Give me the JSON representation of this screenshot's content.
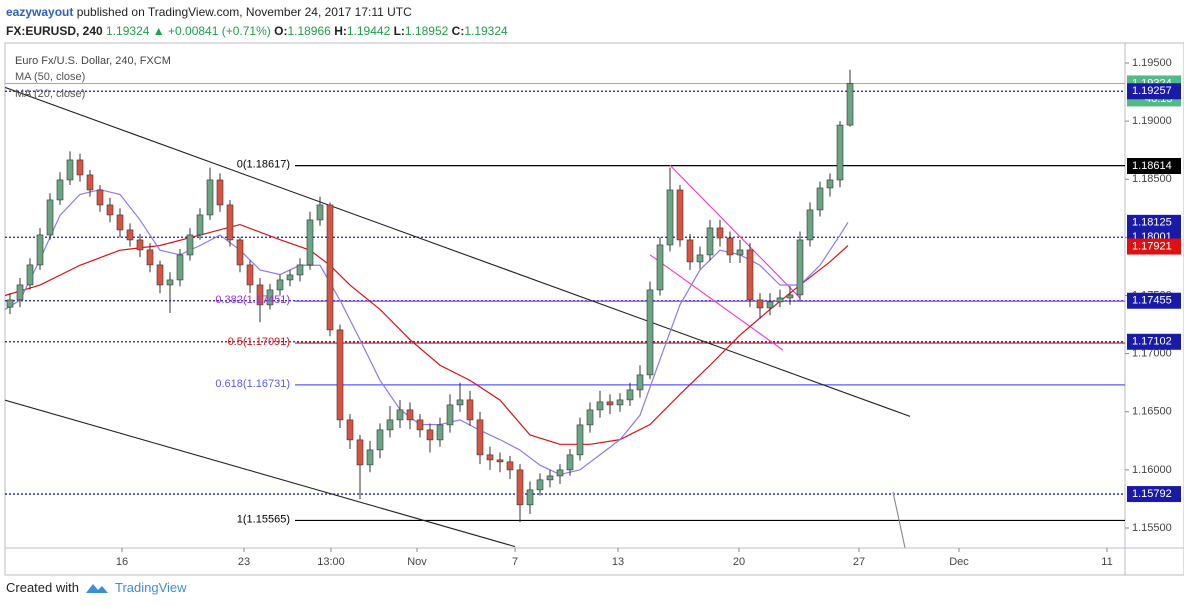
{
  "header": {
    "author": "eazywayout",
    "published": "published on TradingView.com, November 24, 2017 17:11 UTC",
    "symbol": "FX:EURUSD, 240",
    "last": "1.19324",
    "arrow": "▲",
    "change": "+0.00841 (+0.71%)",
    "o_label": "O:",
    "open": "1.18966",
    "h_label": "H:",
    "high": "1.19442",
    "l_label": "L:",
    "low": "1.18952",
    "c_label": "C:",
    "close": "1.19324"
  },
  "chart_data": {
    "type": "candlestick",
    "title": "Euro Fx/U.S. Dollar, 240, FXCM",
    "up_color": "#6ba583",
    "down_color": "#d75442",
    "x": [
      0,
      1,
      2,
      3,
      4,
      5,
      6,
      7,
      8,
      9,
      10,
      11,
      12,
      13,
      14,
      15,
      16,
      17,
      18,
      19,
      20,
      21,
      22,
      23,
      24,
      25,
      26,
      27,
      28,
      29,
      30,
      31,
      32,
      33,
      34,
      35,
      36,
      37,
      38,
      39,
      40,
      41,
      42,
      43,
      44,
      45,
      46,
      47,
      48,
      49,
      50,
      51,
      52,
      53,
      54,
      55,
      56,
      57,
      58,
      59,
      60,
      61,
      62,
      63,
      64,
      65,
      66,
      67,
      68,
      69,
      70,
      71,
      72,
      73,
      74,
      75,
      76,
      77,
      78,
      79,
      80,
      81,
      82,
      83,
      84
    ],
    "open": [
      1.174,
      1.17462,
      1.17591,
      1.17763,
      1.18021,
      1.18322,
      1.18494,
      1.18666,
      1.18537,
      1.18408,
      1.18279,
      1.18193,
      1.18064,
      1.17978,
      1.17892,
      1.17763,
      1.17591,
      1.17634,
      1.17849,
      1.18021,
      1.18193,
      1.18494,
      1.18279,
      1.17978,
      1.17763,
      1.17591,
      1.17419,
      1.17548,
      1.17634,
      1.17677,
      1.17763,
      1.1815,
      1.18279,
      1.17204,
      1.1643,
      1.16258,
      1.16043,
      1.16172,
      1.16344,
      1.1643,
      1.16516,
      1.1643,
      1.16344,
      1.16258,
      1.16387,
      1.16559,
      1.16602,
      1.1643,
      1.16129,
      1.16086,
      1.16069,
      1.16,
      1.15699,
      1.15828,
      1.15914,
      1.15948,
      1.16,
      1.16129,
      1.16387,
      1.16516,
      1.16585,
      1.16559,
      1.16602,
      1.16688,
      1.16817,
      1.17548,
      1.17935,
      1.18408,
      1.17978,
      1.17789,
      1.17849,
      1.18081,
      1.17995,
      1.17849,
      1.17892,
      1.17462,
      1.17393,
      1.17445,
      1.17479,
      1.17505,
      1.17978,
      1.18236,
      1.18425,
      1.18494,
      1.18966
    ],
    "high": [
      1.1752,
      1.1765,
      1.1782,
      1.1808,
      1.1838,
      1.1856,
      1.1874,
      1.1872,
      1.1858,
      1.1845,
      1.1834,
      1.1825,
      1.1812,
      1.1803,
      1.1795,
      1.178,
      1.177,
      1.179,
      1.1808,
      1.1825,
      1.186,
      1.1855,
      1.1832,
      1.18,
      1.178,
      1.1765,
      1.176,
      1.1768,
      1.1772,
      1.1782,
      1.1822,
      1.1835,
      1.183,
      1.1725,
      1.1648,
      1.163,
      1.1625,
      1.164,
      1.1655,
      1.166,
      1.1658,
      1.1648,
      1.164,
      1.1645,
      1.1665,
      1.1675,
      1.1668,
      1.165,
      1.162,
      1.1615,
      1.1612,
      1.1605,
      1.159,
      1.1597,
      1.16,
      1.1605,
      1.1618,
      1.1645,
      1.1658,
      1.1668,
      1.1665,
      1.1666,
      1.1675,
      1.169,
      1.1762,
      1.18,
      1.186,
      1.1845,
      1.1803,
      1.1792,
      1.1815,
      1.1815,
      1.1805,
      1.1798,
      1.1795,
      1.1752,
      1.1752,
      1.1755,
      1.1758,
      1.1805,
      1.183,
      1.1848,
      1.1855,
      1.19,
      1.19442
    ],
    "low": [
      1.1734,
      1.174,
      1.1755,
      1.1772,
      1.1798,
      1.1828,
      1.1845,
      1.1848,
      1.1835,
      1.1822,
      1.1813,
      1.18,
      1.1792,
      1.1783,
      1.177,
      1.1752,
      1.1735,
      1.1758,
      1.178,
      1.1798,
      1.1815,
      1.1822,
      1.1792,
      1.177,
      1.1752,
      1.1727,
      1.1738,
      1.175,
      1.1758,
      1.1762,
      1.1772,
      1.181,
      1.1715,
      1.1636,
      1.1618,
      1.1575,
      1.1598,
      1.161,
      1.1628,
      1.1636,
      1.1635,
      1.1628,
      1.1615,
      1.162,
      1.1632,
      1.165,
      1.1638,
      1.1605,
      1.16,
      1.1598,
      1.1592,
      1.1555,
      1.1562,
      1.1578,
      1.1585,
      1.1588,
      1.1595,
      1.1608,
      1.1632,
      1.1645,
      1.1648,
      1.165,
      1.1655,
      1.1662,
      1.1678,
      1.175,
      1.1788,
      1.1792,
      1.1772,
      1.1773,
      1.178,
      1.1792,
      1.1778,
      1.1778,
      1.174,
      1.173,
      1.1733,
      1.174,
      1.1742,
      1.1745,
      1.1792,
      1.1818,
      1.1835,
      1.1843,
      1.18952
    ],
    "close": [
      1.17462,
      1.17591,
      1.17763,
      1.18021,
      1.18322,
      1.18494,
      1.18666,
      1.18537,
      1.18408,
      1.18279,
      1.18193,
      1.18064,
      1.17978,
      1.17892,
      1.17763,
      1.17591,
      1.17634,
      1.17849,
      1.18021,
      1.18193,
      1.18494,
      1.18279,
      1.17978,
      1.17763,
      1.17591,
      1.17419,
      1.17548,
      1.17634,
      1.17677,
      1.17763,
      1.1815,
      1.18279,
      1.17204,
      1.1643,
      1.16258,
      1.16043,
      1.16172,
      1.16344,
      1.1643,
      1.16516,
      1.1643,
      1.16344,
      1.16258,
      1.16387,
      1.16559,
      1.16602,
      1.1643,
      1.16129,
      1.16086,
      1.16069,
      1.16,
      1.15699,
      1.15828,
      1.15914,
      1.15948,
      1.16,
      1.16129,
      1.16387,
      1.16516,
      1.16585,
      1.16559,
      1.16602,
      1.16688,
      1.16817,
      1.17548,
      1.17935,
      1.18408,
      1.17978,
      1.17789,
      1.17849,
      1.18081,
      1.17995,
      1.17849,
      1.17892,
      1.17462,
      1.17393,
      1.17445,
      1.17479,
      1.17505,
      1.17978,
      1.18236,
      1.18425,
      1.18494,
      1.18966,
      1.19324
    ],
    "series": [
      {
        "name": "MA (50, close)",
        "color": "#e01010",
        "x": [
          -0.5,
          3,
          7,
          11,
          15,
          19,
          23,
          27,
          30,
          32,
          34,
          37,
          40,
          43,
          46,
          49,
          52,
          55,
          58,
          61,
          64,
          67,
          70,
          73,
          76,
          79,
          82,
          83.8
        ],
        "values": [
          1.175,
          1.1759,
          1.1776,
          1.1789,
          1.1793,
          1.1802,
          1.1811,
          1.1798,
          1.1789,
          1.1776,
          1.1759,
          1.1738,
          1.1712,
          1.169,
          1.1677,
          1.166,
          1.163,
          1.1622,
          1.1622,
          1.1626,
          1.1639,
          1.1665,
          1.169,
          1.1716,
          1.1738,
          1.1759,
          1.1779,
          1.1793
        ]
      },
      {
        "name": "MA (20, close)",
        "color": "#8a7cf0",
        "x": [
          -0.5,
          1,
          3,
          5,
          7,
          9,
          11,
          13,
          15,
          17,
          19,
          21,
          23,
          25,
          27,
          29,
          31,
          33,
          35,
          37,
          39,
          41,
          43,
          45,
          47,
          49,
          51,
          53,
          55,
          57,
          59,
          61,
          63,
          65,
          67,
          69,
          71,
          73,
          75,
          77,
          79,
          81,
          83,
          83.8
        ],
        "values": [
          1.1738,
          1.1746,
          1.1781,
          1.1819,
          1.1837,
          1.1841,
          1.1837,
          1.1815,
          1.1789,
          1.1785,
          1.1793,
          1.1802,
          1.1789,
          1.1772,
          1.1768,
          1.1776,
          1.1776,
          1.1746,
          1.1712,
          1.1677,
          1.1652,
          1.1639,
          1.1639,
          1.1643,
          1.1634,
          1.1626,
          1.1617,
          1.1604,
          1.1596,
          1.16,
          1.1613,
          1.1626,
          1.1647,
          1.1695,
          1.1742,
          1.1772,
          1.1789,
          1.1785,
          1.1776,
          1.1759,
          1.1759,
          1.1776,
          1.1802,
          1.1813
        ]
      }
    ],
    "fib_levels": [
      {
        "label": "0(1.18617)",
        "value": 1.18617,
        "color": "#000000"
      },
      {
        "label": "0.382(1.17451)",
        "value": 1.17451,
        "color": "#9b30e0"
      },
      {
        "label": "0.5(1.17091)",
        "value": 1.17091,
        "color": "#e01010"
      },
      {
        "label": "0.618(1.16731)",
        "value": 1.16731,
        "color": "#5b5bf0"
      },
      {
        "label": "1(1.15565)",
        "value": 1.15565,
        "color": "#000000"
      }
    ],
    "trend_lines": [
      {
        "color": "#222222",
        "x": [
          -0.5,
          90
        ],
        "values": [
          1.1929,
          1.1646
        ]
      },
      {
        "color": "#222222",
        "x": [
          -0.5,
          50.5
        ],
        "values": [
          1.166,
          1.1534
        ]
      },
      {
        "color": "#ff33cc",
        "x": [
          66,
          79
        ],
        "values": [
          1.1862,
          1.1748
        ]
      },
      {
        "color": "#ff33cc",
        "x": [
          64,
          77.3
        ],
        "values": [
          1.1785,
          1.1703
        ]
      },
      {
        "color": "#888888",
        "x": [
          88.3,
          89.5
        ],
        "values": [
          1.1581,
          1.1533
        ]
      }
    ],
    "price_lines": [
      {
        "value": 1.19324,
        "color": "#53b987",
        "line": "solid"
      },
      {
        "value": 1.19257,
        "color": "#1a1aa8",
        "line": "dotted"
      },
      {
        "value": 1.18614,
        "color": "#000000",
        "line": "none"
      },
      {
        "value": 1.18125,
        "color": "#1a1aa8",
        "line": "none"
      },
      {
        "value": 1.18001,
        "color": "#1a1aa8",
        "line": "dotted"
      },
      {
        "value": 1.17921,
        "color": "#e01010",
        "line": "none"
      },
      {
        "value": 1.17455,
        "color": "#1a1aa8",
        "line": "dotted"
      },
      {
        "value": 1.17102,
        "color": "#1a1aa8",
        "line": "dotted"
      },
      {
        "value": 1.15792,
        "color": "#1a1aa8",
        "line": "dotted"
      }
    ],
    "countdown": "48:15",
    "xlim": [
      -0.5,
      111.5
    ],
    "xticks": [
      {
        "value": 11.2,
        "label": "16"
      },
      {
        "value": 23.4,
        "label": "23"
      },
      {
        "value": 32.1,
        "label": "13:00"
      },
      {
        "value": 40.7,
        "label": "Nov"
      },
      {
        "value": 50.5,
        "label": "7"
      },
      {
        "value": 60.8,
        "label": "13"
      },
      {
        "value": 72.9,
        "label": "20"
      },
      {
        "value": 84.9,
        "label": "27"
      },
      {
        "value": 94.9,
        "label": "Dec"
      },
      {
        "value": 109.7,
        "label": "11"
      }
    ],
    "ylim": [
      1.15328,
      1.19672
    ],
    "yticks": [
      {
        "value": 1.155,
        "label": "1.15500"
      },
      {
        "value": 1.16,
        "label": "1.16000"
      },
      {
        "value": 1.165,
        "label": "1.16500"
      },
      {
        "value": 1.17,
        "label": "1.17000"
      },
      {
        "value": 1.175,
        "label": "1.17500"
      },
      {
        "value": 1.18,
        "label": "1.18000"
      },
      {
        "value": 1.185,
        "label": "1.18500"
      },
      {
        "value": 1.19,
        "label": "1.19000"
      },
      {
        "value": 1.195,
        "label": "1.19500"
      }
    ]
  },
  "footer": {
    "created": "Created with",
    "brand": "TradingView"
  }
}
